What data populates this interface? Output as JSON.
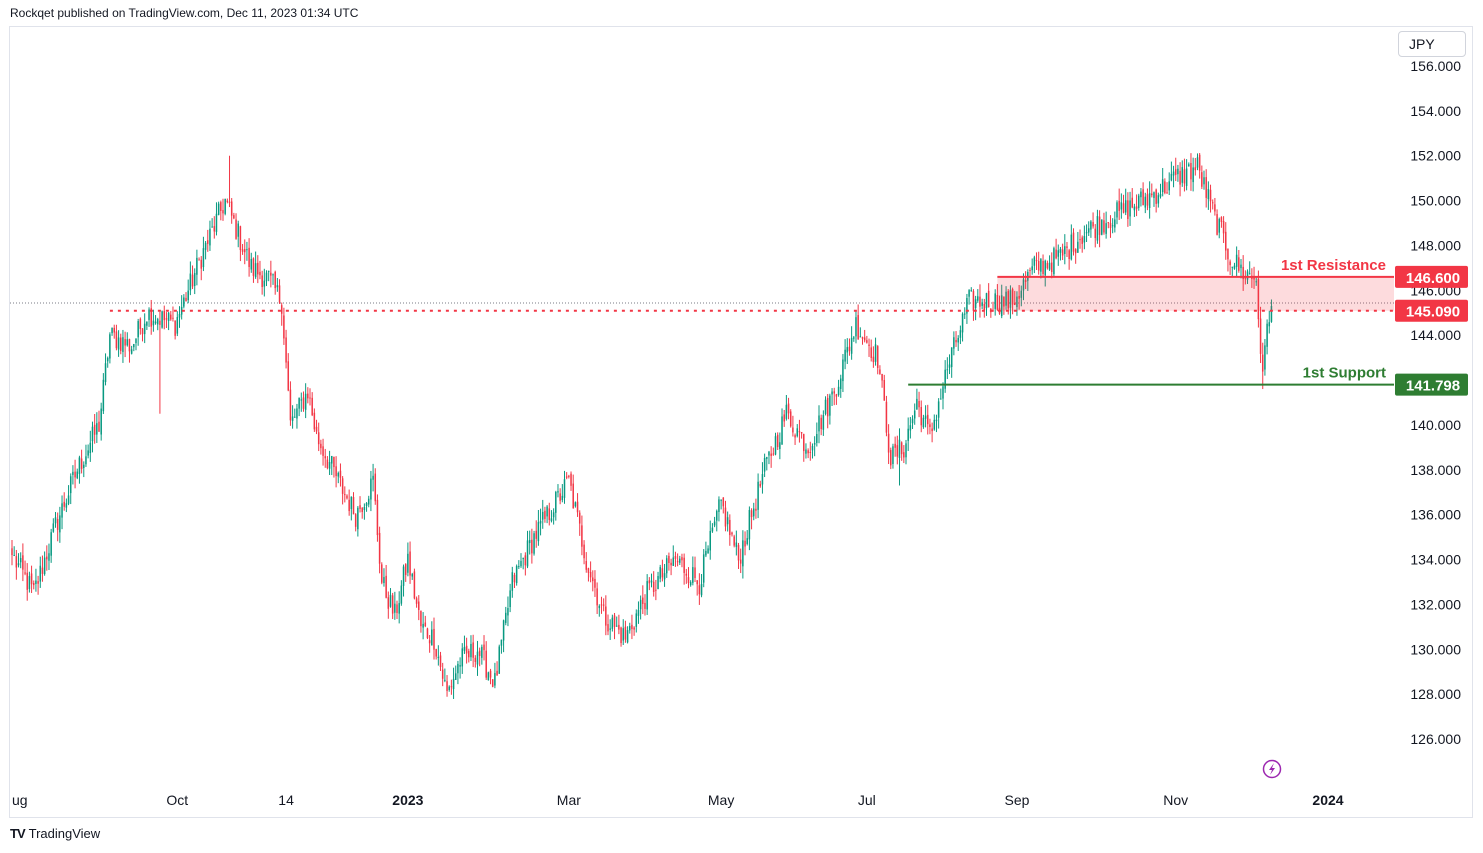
{
  "header": {
    "text": "Rockqet published on TradingView.com, Dec 11, 2023 01:34 UTC"
  },
  "footer": {
    "brand": "TradingView",
    "logo": "TV"
  },
  "chart_data": {
    "type": "candlestick",
    "currency": "JPY",
    "y_ticks": [
      "156.000",
      "154.000",
      "152.000",
      "150.000",
      "148.000",
      "146.000",
      "144.000",
      "140.000",
      "138.000",
      "136.000",
      "134.000",
      "132.000",
      "130.000",
      "128.000",
      "126.000"
    ],
    "y_range": [
      124.5,
      157.2
    ],
    "x_ticks": [
      {
        "label": "ug",
        "bold": false
      },
      {
        "label": "Oct",
        "bold": false
      },
      {
        "label": "14",
        "bold": false
      },
      {
        "label": "2023",
        "bold": true
      },
      {
        "label": "Mar",
        "bold": false
      },
      {
        "label": "May",
        "bold": false
      },
      {
        "label": "Jul",
        "bold": false
      },
      {
        "label": "Sep",
        "bold": false
      },
      {
        "label": "Nov",
        "bold": false
      },
      {
        "label": "2024",
        "bold": true
      }
    ],
    "x_tick_index": [
      0,
      76,
      126,
      182,
      256,
      326,
      393,
      462,
      535,
      605
    ],
    "x_domain": [
      0,
      672
    ],
    "levels": {
      "resistance": {
        "label": "1st Resistance",
        "value": "146.600",
        "price": 146.6,
        "from_index": 453,
        "color": "#f23645"
      },
      "pivot": {
        "value": "145.090",
        "price": 145.09,
        "from_index": 45,
        "color": "#f23645"
      },
      "support": {
        "label": "1st Support",
        "value": "141.798",
        "price": 141.798,
        "from_index": 412,
        "color": "#2e7d32"
      },
      "last_price": 145.3
    },
    "anchors": [
      [
        0,
        134.2
      ],
      [
        10,
        132.5
      ],
      [
        20,
        135.5
      ],
      [
        30,
        138.0
      ],
      [
        40,
        140.0
      ],
      [
        45,
        144.0
      ],
      [
        55,
        143.5
      ],
      [
        62,
        145.0
      ],
      [
        75,
        144.5
      ],
      [
        87,
        147.5
      ],
      [
        98,
        150.0
      ],
      [
        104,
        148.5
      ],
      [
        110,
        147.0
      ],
      [
        118,
        146.5
      ],
      [
        124,
        145.5
      ],
      [
        128,
        140.0
      ],
      [
        136,
        141.5
      ],
      [
        140,
        139.5
      ],
      [
        150,
        137.5
      ],
      [
        158,
        136.0
      ],
      [
        166,
        137.5
      ],
      [
        170,
        133.0
      ],
      [
        176,
        131.5
      ],
      [
        182,
        134.0
      ],
      [
        188,
        131.0
      ],
      [
        194,
        130.5
      ],
      [
        200,
        128.0
      ],
      [
        206,
        129.5
      ],
      [
        214,
        130.0
      ],
      [
        222,
        128.5
      ],
      [
        230,
        133.0
      ],
      [
        240,
        135.0
      ],
      [
        256,
        137.5
      ],
      [
        264,
        134.0
      ],
      [
        272,
        131.5
      ],
      [
        282,
        130.5
      ],
      [
        292,
        132.5
      ],
      [
        305,
        134.0
      ],
      [
        316,
        133.0
      ],
      [
        326,
        136.5
      ],
      [
        334,
        134.0
      ],
      [
        346,
        138.0
      ],
      [
        356,
        140.5
      ],
      [
        366,
        139.0
      ],
      [
        378,
        141.5
      ],
      [
        388,
        144.5
      ],
      [
        398,
        143.0
      ],
      [
        404,
        138.5
      ],
      [
        410,
        139.0
      ],
      [
        416,
        141.0
      ],
      [
        422,
        139.5
      ],
      [
        430,
        142.5
      ],
      [
        440,
        145.5
      ],
      [
        450,
        145.5
      ],
      [
        460,
        145.5
      ],
      [
        470,
        147.0
      ],
      [
        482,
        147.5
      ],
      [
        492,
        148.5
      ],
      [
        500,
        149.0
      ],
      [
        510,
        149.5
      ],
      [
        520,
        150.0
      ],
      [
        528,
        150.5
      ],
      [
        535,
        151.0
      ],
      [
        545,
        151.5
      ],
      [
        552,
        149.5
      ],
      [
        560,
        147.5
      ],
      [
        566,
        146.8
      ],
      [
        572,
        146.5
      ],
      [
        575,
        141.9
      ],
      [
        577,
        144.7
      ],
      [
        579,
        145.3
      ]
    ],
    "spikes": [
      {
        "i": 68,
        "type": "low",
        "price": 140.5
      },
      {
        "i": 100,
        "type": "high",
        "price": 152.0
      },
      {
        "i": 408,
        "type": "low",
        "price": 137.3
      },
      {
        "i": 544,
        "type": "high",
        "price": 151.9
      },
      {
        "i": 575,
        "type": "low",
        "price": 141.6
      }
    ]
  }
}
